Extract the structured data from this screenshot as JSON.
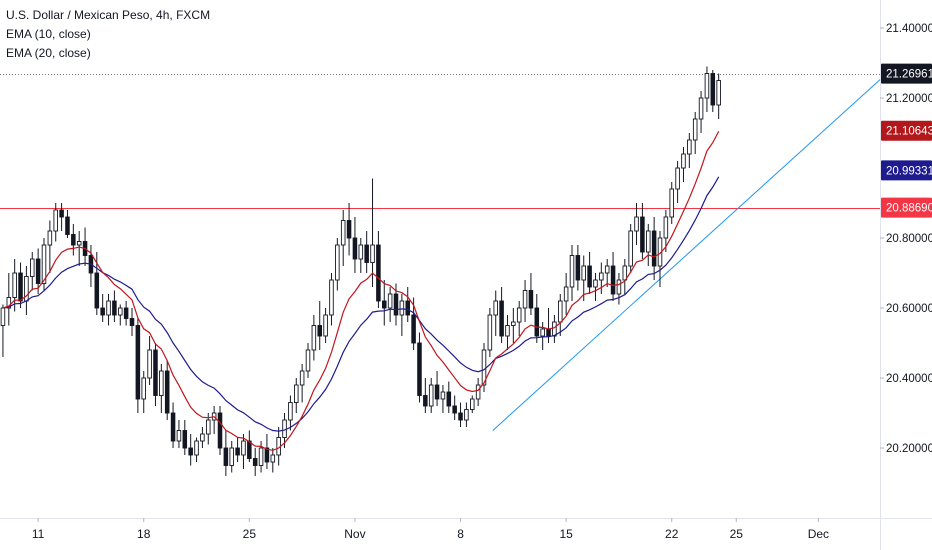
{
  "legend": {
    "symbol": "U.S. Dollar / Mexican Peso, 4h, FXCM",
    "ema_fast": "EMA (10, close)",
    "ema_slow": "EMA (20, close)"
  },
  "chart_data": {
    "type": "candlestick",
    "symbol": "U.S. Dollar / Mexican Peso",
    "interval": "4h",
    "source": "FXCM",
    "ylim": [
      20.0,
      21.48
    ],
    "y_ticks": [
      "21.40000",
      "21.20000",
      "20.80000",
      "20.60000",
      "20.40000",
      "20.20000"
    ],
    "x_ticks": [
      {
        "label": "11",
        "index": 6
      },
      {
        "label": "18",
        "index": 24
      },
      {
        "label": "25",
        "index": 42
      },
      {
        "label": "Nov",
        "index": 60
      },
      {
        "label": "8",
        "index": 78
      },
      {
        "label": "15",
        "index": 96
      },
      {
        "label": "22",
        "index": 114
      },
      {
        "label": "25",
        "index": 125
      },
      {
        "label": "Dec",
        "index": 139
      }
    ],
    "bar_count_visible": 150,
    "price_labels": [
      {
        "label": "21.26961",
        "value": 21.26961,
        "color": "#131722"
      },
      {
        "label": "21.10643",
        "value": 21.10643,
        "color": "#b2181b"
      },
      {
        "label": "20.99331",
        "value": 20.99331,
        "color": "#1e1b8f"
      },
      {
        "label": "20.88690",
        "value": 20.8869,
        "color": "#f23645"
      }
    ],
    "horizontal_lines": [
      {
        "value": 20.8869,
        "color": "#f23645",
        "style": "solid"
      },
      {
        "value": 21.26961,
        "color": "#787b86",
        "style": "dotted"
      }
    ],
    "trendline": {
      "from": {
        "index": 83.5,
        "value": 20.25
      },
      "to": {
        "index": 150,
        "value": 21.26
      },
      "color": "#2196f3"
    },
    "colors": {
      "up": "#ffffff",
      "down": "#131722",
      "outline": "#131722",
      "ema_fast": "#c0161b",
      "ema_slow": "#1e1b8f"
    },
    "candles": [
      [
        20.55,
        20.61,
        20.46,
        20.6
      ],
      [
        20.6,
        20.7,
        20.55,
        20.63
      ],
      [
        20.63,
        20.74,
        20.59,
        20.7
      ],
      [
        20.7,
        20.73,
        20.6,
        20.62
      ],
      [
        20.62,
        20.72,
        20.58,
        20.69
      ],
      [
        20.69,
        20.76,
        20.65,
        20.74
      ],
      [
        20.74,
        20.77,
        20.64,
        20.67
      ],
      [
        20.67,
        20.8,
        20.65,
        20.78
      ],
      [
        20.78,
        20.85,
        20.7,
        20.82
      ],
      [
        20.82,
        20.9,
        20.79,
        20.88
      ],
      [
        20.88,
        20.9,
        20.82,
        20.86
      ],
      [
        20.86,
        20.88,
        20.8,
        20.81
      ],
      [
        20.81,
        20.84,
        20.75,
        20.78
      ],
      [
        20.78,
        20.82,
        20.72,
        20.79
      ],
      [
        20.79,
        20.83,
        20.72,
        20.75
      ],
      [
        20.75,
        20.78,
        20.66,
        20.7
      ],
      [
        20.7,
        20.76,
        20.58,
        20.6
      ],
      [
        20.6,
        20.64,
        20.56,
        20.58
      ],
      [
        20.58,
        20.64,
        20.55,
        20.62
      ],
      [
        20.62,
        20.65,
        20.56,
        20.58
      ],
      [
        20.58,
        20.61,
        20.55,
        20.6
      ],
      [
        20.6,
        20.62,
        20.55,
        20.57
      ],
      [
        20.57,
        20.6,
        20.52,
        20.55
      ],
      [
        20.55,
        20.57,
        20.3,
        20.34
      ],
      [
        20.34,
        20.42,
        20.3,
        20.4
      ],
      [
        20.4,
        20.52,
        20.38,
        20.48
      ],
      [
        20.48,
        20.5,
        20.32,
        20.35
      ],
      [
        20.35,
        20.44,
        20.3,
        20.42
      ],
      [
        20.42,
        20.45,
        20.28,
        20.3
      ],
      [
        20.3,
        20.33,
        20.2,
        20.22
      ],
      [
        20.22,
        20.28,
        20.2,
        20.25
      ],
      [
        20.25,
        20.28,
        20.18,
        20.2
      ],
      [
        20.2,
        20.24,
        20.15,
        20.18
      ],
      [
        20.18,
        20.23,
        20.16,
        20.22
      ],
      [
        20.22,
        20.26,
        20.2,
        20.24
      ],
      [
        20.24,
        20.3,
        20.21,
        20.28
      ],
      [
        20.28,
        20.32,
        20.24,
        20.3
      ],
      [
        20.3,
        20.32,
        20.18,
        20.2
      ],
      [
        20.2,
        20.25,
        20.12,
        20.15
      ],
      [
        20.15,
        20.22,
        20.13,
        20.2
      ],
      [
        20.2,
        20.23,
        20.16,
        20.18
      ],
      [
        20.18,
        20.24,
        20.14,
        20.22
      ],
      [
        20.22,
        20.25,
        20.16,
        20.17
      ],
      [
        20.17,
        20.2,
        20.12,
        20.15
      ],
      [
        20.15,
        20.22,
        20.13,
        20.2
      ],
      [
        20.2,
        20.24,
        20.14,
        20.16
      ],
      [
        20.16,
        20.2,
        20.13,
        20.18
      ],
      [
        20.18,
        20.26,
        20.15,
        20.23
      ],
      [
        20.23,
        20.3,
        20.2,
        20.28
      ],
      [
        20.28,
        20.35,
        20.25,
        20.33
      ],
      [
        20.33,
        20.4,
        20.3,
        20.38
      ],
      [
        20.38,
        20.44,
        20.33,
        20.42
      ],
      [
        20.42,
        20.5,
        20.4,
        20.48
      ],
      [
        20.48,
        20.58,
        20.45,
        20.55
      ],
      [
        20.55,
        20.62,
        20.48,
        20.52
      ],
      [
        20.52,
        20.6,
        20.5,
        20.58
      ],
      [
        20.58,
        20.7,
        20.55,
        20.68
      ],
      [
        20.68,
        20.8,
        20.65,
        20.78
      ],
      [
        20.78,
        20.88,
        20.72,
        20.85
      ],
      [
        20.85,
        20.9,
        20.75,
        20.8
      ],
      [
        20.8,
        20.86,
        20.7,
        20.74
      ],
      [
        20.74,
        20.8,
        20.7,
        20.78
      ],
      [
        20.78,
        20.82,
        20.7,
        20.73
      ],
      [
        20.73,
        20.97,
        20.66,
        20.78
      ],
      [
        20.78,
        20.82,
        20.6,
        20.62
      ],
      [
        20.62,
        20.68,
        20.55,
        20.6
      ],
      [
        20.6,
        20.66,
        20.56,
        20.64
      ],
      [
        20.64,
        20.67,
        20.55,
        20.58
      ],
      [
        20.58,
        20.64,
        20.52,
        20.62
      ],
      [
        20.62,
        20.66,
        20.56,
        20.58
      ],
      [
        20.58,
        20.63,
        20.48,
        20.5
      ],
      [
        20.5,
        20.53,
        20.33,
        20.35
      ],
      [
        20.35,
        20.4,
        20.3,
        20.32
      ],
      [
        20.32,
        20.4,
        20.3,
        20.38
      ],
      [
        20.38,
        20.42,
        20.32,
        20.34
      ],
      [
        20.34,
        20.38,
        20.3,
        20.36
      ],
      [
        20.36,
        20.39,
        20.3,
        20.32
      ],
      [
        20.32,
        20.35,
        20.28,
        20.3
      ],
      [
        20.3,
        20.33,
        20.26,
        20.28
      ],
      [
        20.28,
        20.33,
        20.26,
        20.31
      ],
      [
        20.31,
        20.35,
        20.3,
        20.34
      ],
      [
        20.34,
        20.4,
        20.32,
        20.38
      ],
      [
        20.38,
        20.5,
        20.36,
        20.48
      ],
      [
        20.48,
        20.6,
        20.46,
        20.58
      ],
      [
        20.58,
        20.65,
        20.52,
        20.62
      ],
      [
        20.62,
        20.66,
        20.5,
        20.52
      ],
      [
        20.52,
        20.58,
        20.48,
        20.55
      ],
      [
        20.55,
        20.6,
        20.5,
        20.56
      ],
      [
        20.56,
        20.62,
        20.52,
        20.6
      ],
      [
        20.6,
        20.68,
        20.56,
        20.65
      ],
      [
        20.65,
        20.7,
        20.58,
        20.6
      ],
      [
        20.6,
        20.64,
        20.5,
        20.52
      ],
      [
        20.52,
        20.56,
        20.48,
        20.54
      ],
      [
        20.54,
        20.6,
        20.5,
        20.52
      ],
      [
        20.52,
        20.58,
        20.5,
        20.56
      ],
      [
        20.56,
        20.64,
        20.52,
        20.62
      ],
      [
        20.62,
        20.7,
        20.58,
        20.66
      ],
      [
        20.66,
        20.78,
        20.62,
        20.75
      ],
      [
        20.75,
        20.78,
        20.65,
        20.68
      ],
      [
        20.68,
        20.75,
        20.62,
        20.72
      ],
      [
        20.72,
        20.76,
        20.64,
        20.66
      ],
      [
        20.66,
        20.7,
        20.62,
        20.68
      ],
      [
        20.68,
        20.73,
        20.64,
        20.7
      ],
      [
        20.7,
        20.74,
        20.66,
        20.72
      ],
      [
        20.72,
        20.76,
        20.62,
        20.64
      ],
      [
        20.64,
        20.7,
        20.61,
        20.68
      ],
      [
        20.68,
        20.74,
        20.64,
        20.72
      ],
      [
        20.72,
        20.84,
        20.7,
        20.82
      ],
      [
        20.82,
        20.9,
        20.78,
        20.86
      ],
      [
        20.86,
        20.9,
        20.74,
        20.76
      ],
      [
        20.76,
        20.84,
        20.72,
        20.82
      ],
      [
        20.82,
        20.86,
        20.68,
        20.72
      ],
      [
        20.72,
        20.82,
        20.66,
        20.8
      ],
      [
        20.8,
        20.88,
        20.76,
        20.86
      ],
      [
        20.86,
        20.96,
        20.84,
        20.94
      ],
      [
        20.94,
        21.02,
        20.9,
        21.0
      ],
      [
        21.0,
        21.06,
        20.96,
        21.04
      ],
      [
        21.04,
        21.1,
        21.0,
        21.08
      ],
      [
        21.08,
        21.16,
        21.04,
        21.14
      ],
      [
        21.14,
        21.22,
        21.1,
        21.2
      ],
      [
        21.2,
        21.29,
        21.16,
        21.27
      ],
      [
        21.27,
        21.28,
        21.16,
        21.18
      ],
      [
        21.18,
        21.27,
        21.14,
        21.25
      ]
    ]
  }
}
